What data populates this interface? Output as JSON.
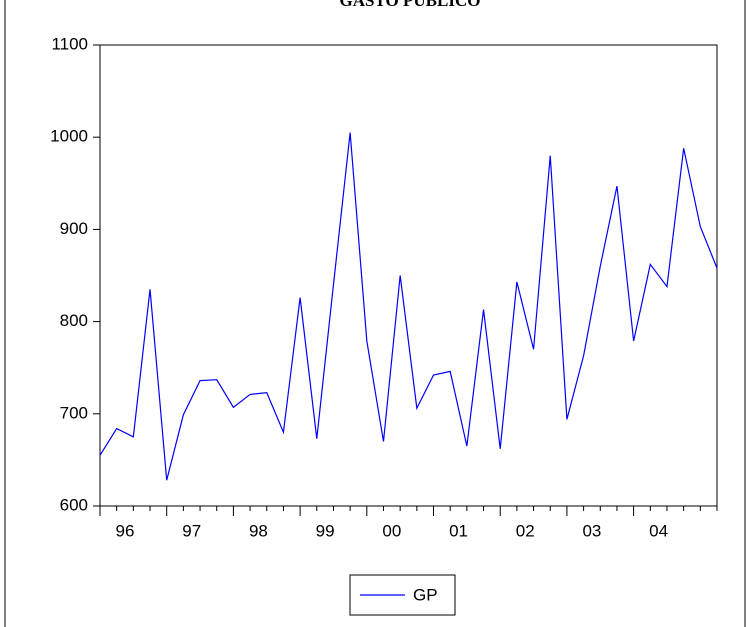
{
  "chart_data": {
    "type": "line",
    "title": "GASTO PUBLICO",
    "categories": [
      "96",
      null,
      null,
      null,
      "97",
      null,
      null,
      null,
      "98",
      null,
      null,
      null,
      "99",
      null,
      null,
      null,
      "00",
      null,
      null,
      null,
      "01",
      null,
      null,
      null,
      "02",
      null,
      null,
      null,
      "03",
      null,
      null,
      null,
      "04",
      null,
      null,
      null,
      null,
      null
    ],
    "series": [
      {
        "name": "GP",
        "color": "#0000ff",
        "values": [
          655,
          684,
          675,
          835,
          628,
          699,
          736,
          737,
          707,
          721,
          723,
          680,
          826,
          673,
          840,
          1005,
          779,
          670,
          850,
          706,
          742,
          746,
          665,
          813,
          662,
          843,
          770,
          980,
          694,
          763,
          860,
          947,
          779,
          862,
          838,
          988,
          903,
          858
        ]
      }
    ],
    "ylim": [
      600,
      1100
    ],
    "yticks": [
      600,
      700,
      800,
      900,
      1000,
      1100
    ],
    "grid": false,
    "legend": "bottom"
  }
}
